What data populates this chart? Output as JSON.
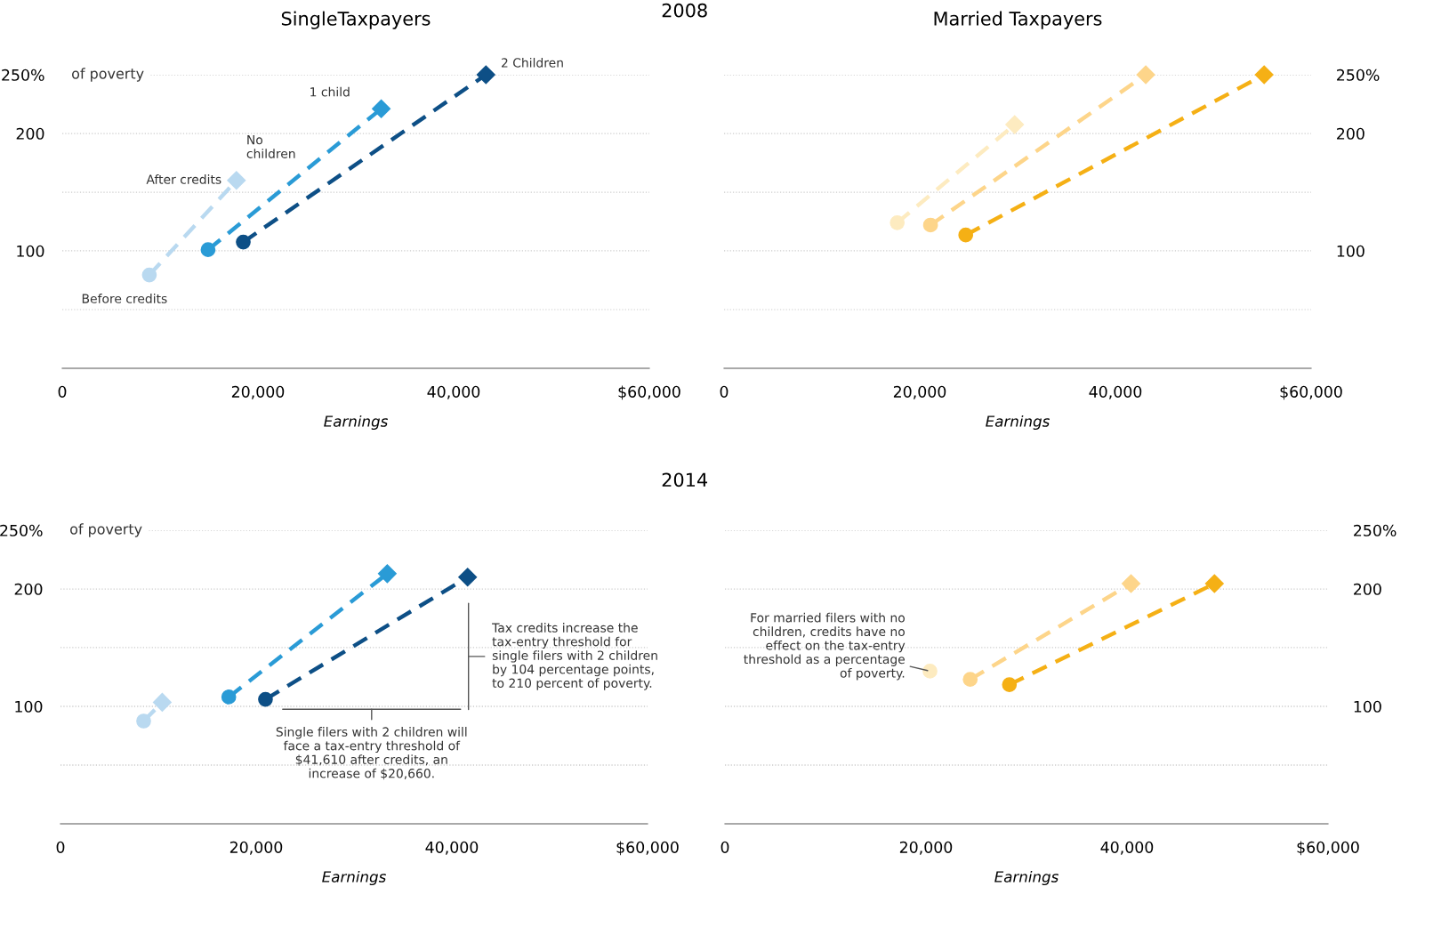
{
  "chart_data": [
    {
      "type": "line",
      "title": "SingleTaxpayers",
      "subtitle": "2008",
      "xlabel": "Earnings",
      "ylabel": "of poverty",
      "xlim": [
        0,
        60000
      ],
      "xticks": [
        0,
        {
          "value": 20000,
          "label": "20,000"
        },
        {
          "value": 40000,
          "label": "40,000"
        },
        {
          "value": 60000,
          "label": "$60,000"
        }
      ],
      "ylim": [
        0,
        250
      ],
      "yticks": [
        {
          "value": 50,
          "label": null
        },
        100,
        {
          "value": 150,
          "label": null
        },
        200,
        {
          "value": 250,
          "label": "250%"
        }
      ],
      "grid": "y",
      "line_style": "dashed",
      "series": [
        {
          "name": "No\nchildren",
          "color": "#b9d9f0",
          "x": [
            8900,
            17800
          ],
          "values": [
            79.5,
            160
          ],
          "marker": [
            "circle",
            "diamond"
          ]
        },
        {
          "name": "1 child",
          "color": "#2a9bd6",
          "x": [
            14900,
            32600
          ],
          "values": [
            101,
            221
          ],
          "marker": [
            "circle",
            "diamond"
          ]
        },
        {
          "name": "2 Children",
          "color": "#0d4f86",
          "x": [
            18500,
            43300
          ],
          "values": [
            107.5,
            250
          ],
          "marker": [
            "circle",
            "diamond"
          ]
        }
      ],
      "annotations": [
        {
          "text": "After credits",
          "x": 17800,
          "y": 160
        },
        {
          "text": "Before credits",
          "x": 8900,
          "y": 79.5
        }
      ]
    },
    {
      "type": "line",
      "title": "Married Taxpayers",
      "xlabel": "Earnings",
      "xlim": [
        0,
        60000
      ],
      "xticks": [
        0,
        {
          "value": 20000,
          "label": "20,000"
        },
        {
          "value": 40000,
          "label": "40,000"
        },
        {
          "value": 60000,
          "label": "$60,000"
        }
      ],
      "ylim": [
        0,
        250
      ],
      "yticks": [
        {
          "value": 50,
          "label": null
        },
        100,
        {
          "value": 150,
          "label": null
        },
        200,
        {
          "value": 250,
          "label": "250%"
        }
      ],
      "grid": "y",
      "line_style": "dashed",
      "series": [
        {
          "color": "#fdebc0",
          "x": [
            17700,
            29700
          ],
          "values": [
            124,
            207.5
          ],
          "marker": [
            "circle",
            "diamond"
          ]
        },
        {
          "color": "#fdd58a",
          "x": [
            21100,
            43100
          ],
          "values": [
            122,
            250
          ],
          "marker": [
            "circle",
            "diamond"
          ]
        },
        {
          "color": "#f5b015",
          "x": [
            24700,
            55200
          ],
          "values": [
            113.5,
            250
          ],
          "marker": [
            "circle",
            "diamond"
          ]
        }
      ]
    },
    {
      "type": "line",
      "subtitle": "2014",
      "xlabel": "Earnings",
      "ylabel": "of poverty",
      "xlim": [
        0,
        60000
      ],
      "xticks": [
        0,
        {
          "value": 20000,
          "label": "20,000"
        },
        {
          "value": 40000,
          "label": "40,000"
        },
        {
          "value": 60000,
          "label": "$60,000"
        }
      ],
      "ylim": [
        0,
        250
      ],
      "yticks": [
        {
          "value": 50,
          "label": null
        },
        100,
        {
          "value": 150,
          "label": null
        },
        200,
        {
          "value": 250,
          "label": "250%"
        }
      ],
      "grid": "y",
      "line_style": "dashed",
      "series": [
        {
          "color": "#b9d9f0",
          "x": [
            8500,
            10400
          ],
          "values": [
            87.5,
            103.5
          ],
          "marker": [
            "circle",
            "diamond"
          ]
        },
        {
          "color": "#2a9bd6",
          "x": [
            17200,
            33400
          ],
          "values": [
            108,
            213
          ],
          "marker": [
            "circle",
            "diamond"
          ]
        },
        {
          "color": "#0d4f86",
          "x": [
            20950,
            41610
          ],
          "values": [
            106,
            210
          ],
          "marker": [
            "circle",
            "diamond"
          ]
        }
      ],
      "annotations": [
        "Tax credits increase the\ntax-entry threshold for\nsingle filers with 2 children\nby 104 percentage points,\nto 210 percent of poverty.",
        "Single filers with 2 children will\nface a tax-entry threshold of\n$41,610 after credits, an\nincrease of $20,660."
      ]
    },
    {
      "type": "line",
      "xlabel": "Earnings",
      "xlim": [
        0,
        60000
      ],
      "xticks": [
        0,
        {
          "value": 20000,
          "label": "20,000"
        },
        {
          "value": 40000,
          "label": "40,000"
        },
        {
          "value": 60000,
          "label": "$60,000"
        }
      ],
      "ylim": [
        0,
        250
      ],
      "yticks": [
        {
          "value": 50,
          "label": null
        },
        100,
        {
          "value": 150,
          "label": null
        },
        200,
        {
          "value": 250,
          "label": "250%"
        }
      ],
      "grid": "y",
      "line_style": "dashed",
      "series": [
        {
          "color": "#fdebc0",
          "x": [
            20400
          ],
          "values": [
            130
          ],
          "marker": [
            "circle"
          ]
        },
        {
          "color": "#fdd58a",
          "x": [
            24400,
            40400
          ],
          "values": [
            123,
            204.5
          ],
          "marker": [
            "circle",
            "diamond"
          ]
        },
        {
          "color": "#f5b015",
          "x": [
            28300,
            48700
          ],
          "values": [
            118.5,
            204.5
          ],
          "marker": [
            "circle",
            "diamond"
          ]
        }
      ],
      "annotations": [
        {
          "text": "For married filers with no\nchildren, credits have no\neffect on the tax-entry\nthreshold as a percentage\nof poverty.",
          "x": 20400,
          "y": 130
        }
      ]
    }
  ]
}
